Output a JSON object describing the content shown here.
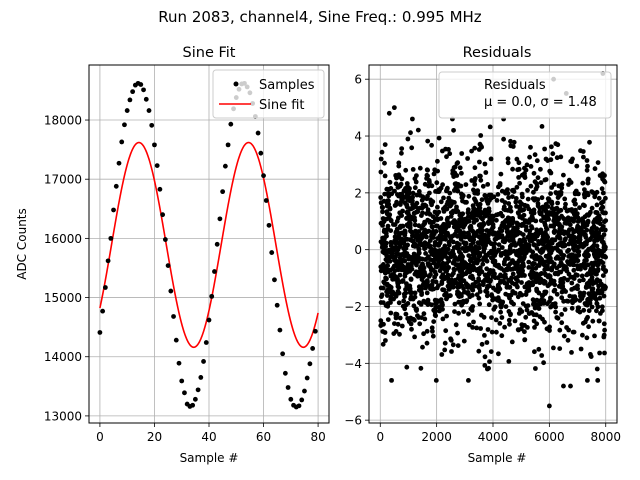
{
  "suptitle": "Run 2083, channel4, Sine Freq.: 0.995 MHz",
  "chart_data": [
    {
      "type": "line",
      "title": "Sine Fit",
      "xlabel": "Sample #",
      "ylabel": "ADC Counts",
      "xlim": [
        -4,
        84
      ],
      "ylim": [
        12880,
        18930
      ],
      "xticks": [
        0,
        20,
        40,
        60,
        80
      ],
      "yticks": [
        13000,
        14000,
        15000,
        16000,
        17000,
        18000
      ],
      "grid": true,
      "legend": {
        "placement": "upper-right",
        "entries": [
          "Samples",
          "Sine fit"
        ]
      },
      "series": [
        {
          "name": "Samples",
          "style": "points",
          "color": "#000000",
          "x": [
            0,
            1,
            2,
            3,
            4,
            5,
            6,
            7,
            8,
            9,
            10,
            11,
            12,
            13,
            14,
            15,
            16,
            17,
            18,
            19,
            20,
            21,
            22,
            23,
            24,
            25,
            26,
            27,
            28,
            29,
            30,
            31,
            32,
            33,
            34,
            35,
            36,
            37,
            38,
            39,
            40,
            41,
            42,
            43,
            44,
            45,
            46,
            47,
            48,
            49,
            50,
            51,
            52,
            53,
            54,
            55,
            56,
            57,
            58,
            59,
            60,
            61,
            62,
            63,
            64,
            65,
            66,
            67,
            68,
            69,
            70,
            71,
            72,
            73,
            74,
            75,
            76,
            77,
            78,
            79
          ],
          "y": [
            14410,
            14770,
            15170,
            15620,
            16000,
            16480,
            16880,
            17270,
            17630,
            17920,
            18160,
            18340,
            18480,
            18590,
            18620,
            18600,
            18510,
            18350,
            18160,
            17910,
            17580,
            17230,
            16830,
            16400,
            15980,
            15540,
            15110,
            14680,
            14280,
            13890,
            13590,
            13390,
            13200,
            13160,
            13180,
            13280,
            13440,
            13650,
            13920,
            14240,
            14620,
            15020,
            15440,
            15900,
            16330,
            16790,
            17220,
            17580,
            17930,
            18190,
            18380,
            18520,
            18610,
            18620,
            18560,
            18460,
            18280,
            18060,
            17780,
            17440,
            17060,
            16640,
            16220,
            15760,
            15300,
            14870,
            14450,
            14050,
            13720,
            13480,
            13280,
            13180,
            13150,
            13170,
            13270,
            13420,
            13640,
            13880,
            14140,
            14430
          ]
        },
        {
          "name": "Sine fit",
          "style": "line",
          "color": "#ff0000",
          "model": {
            "offset": 15890,
            "amplitude": 1730,
            "period": 40.2,
            "peak_x": 14.3
          },
          "x_range": [
            0,
            80
          ]
        }
      ]
    },
    {
      "type": "scatter",
      "title": "Residuals",
      "xlabel": "Sample #",
      "ylabel": "",
      "xlim": [
        -400,
        8400
      ],
      "ylim": [
        -6.1,
        6.5
      ],
      "xticks": [
        0,
        2000,
        4000,
        6000,
        8000
      ],
      "yticks": [
        -6,
        -4,
        -2,
        0,
        2,
        4,
        6
      ],
      "grid": true,
      "legend": {
        "placement": "upper-right",
        "entries": [
          "Residuals",
          "μ = 0.0, σ = 1.48"
        ]
      },
      "series": [
        {
          "name": "Residuals",
          "color": "#000000",
          "n_points": 8000,
          "mu": 0.0,
          "sigma": 1.48,
          "x_range": [
            0,
            8000
          ],
          "outliers": [
            {
              "x": 6000,
              "y": -5.5
            },
            {
              "x": 6150,
              "y": 6.0
            },
            {
              "x": 6600,
              "y": 5.5
            },
            {
              "x": 7900,
              "y": 6.2
            },
            {
              "x": 2600,
              "y": 4.2
            },
            {
              "x": 500,
              "y": 5.0
            },
            {
              "x": 320,
              "y": 4.8
            },
            {
              "x": 7700,
              "y": -4.2
            },
            {
              "x": 6500,
              "y": -4.8
            },
            {
              "x": 6750,
              "y": -4.8
            },
            {
              "x": 400,
              "y": -4.6
            },
            {
              "x": 3800,
              "y": -4.2
            }
          ]
        }
      ]
    }
  ]
}
